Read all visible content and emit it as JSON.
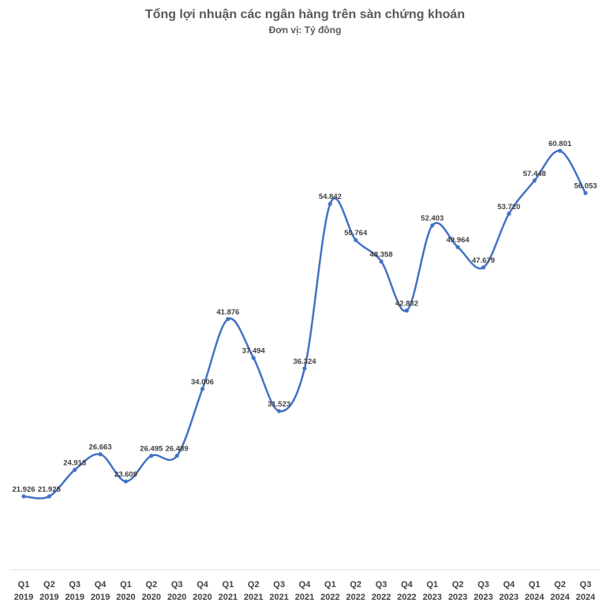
{
  "chart_data": {
    "type": "line",
    "title": "Tổng lợi nhuận các ngân hàng trên sàn chứng khoán",
    "subtitle": "Đơn vị: Tỷ đồng",
    "xlabel": "",
    "ylabel": "",
    "categories": [
      [
        "Q1",
        "2019"
      ],
      [
        "Q2",
        "2019"
      ],
      [
        "Q3",
        "2019"
      ],
      [
        "Q4",
        "2019"
      ],
      [
        "Q1",
        "2020"
      ],
      [
        "Q2",
        "2020"
      ],
      [
        "Q3",
        "2020"
      ],
      [
        "Q4",
        "2020"
      ],
      [
        "Q1",
        "2021"
      ],
      [
        "Q2",
        "2021"
      ],
      [
        "Q3",
        "2021"
      ],
      [
        "Q4",
        "2021"
      ],
      [
        "Q1",
        "2022"
      ],
      [
        "Q2",
        "2022"
      ],
      [
        "Q3",
        "2022"
      ],
      [
        "Q4",
        "2022"
      ],
      [
        "Q1",
        "2023"
      ],
      [
        "Q2",
        "2023"
      ],
      [
        "Q3",
        "2023"
      ],
      [
        "Q4",
        "2023"
      ],
      [
        "Q1",
        "2024"
      ],
      [
        "Q2",
        "2024"
      ],
      [
        "Q3",
        "2024"
      ]
    ],
    "values": [
      21926,
      21925,
      24913,
      26663,
      23609,
      26495,
      26489,
      34006,
      41876,
      37494,
      31523,
      36324,
      54842,
      50764,
      48358,
      42832,
      52403,
      49964,
      47679,
      53720,
      57448,
      60801,
      56053
    ],
    "data_labels": [
      "21.926",
      "21.925",
      "24.913",
      "26.663",
      "23.609",
      "26.495",
      "26.489",
      "34.006",
      "41.876",
      "37.494",
      "31.523",
      "36.324",
      "54.842",
      "50.764",
      "48.358",
      "42.832",
      "52.403",
      "49.964",
      "47.679",
      "53.720",
      "57.448",
      "60.801",
      "56.053"
    ],
    "ylim": [
      0,
      70000
    ],
    "grid": false,
    "legend": "none",
    "smooth": true,
    "line_color": "#4472C4",
    "axis_color": "#D9D9D9"
  }
}
